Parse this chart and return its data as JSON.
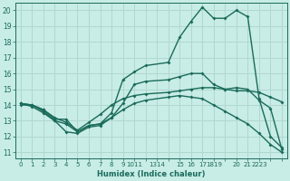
{
  "title": "",
  "xlabel": "Humidex (Indice chaleur)",
  "bg_color": "#c8ece6",
  "line_color": "#1a6b5a",
  "grid_color": "#b0d8d0",
  "xlim": [
    -0.5,
    23.5
  ],
  "ylim": [
    10.6,
    20.5
  ],
  "yticks": [
    11,
    12,
    13,
    14,
    15,
    16,
    17,
    18,
    19,
    20
  ],
  "xtick_positions": [
    0,
    1,
    2,
    3,
    4,
    5,
    6,
    7,
    8,
    9,
    10,
    11,
    12,
    13,
    14,
    15,
    16,
    17,
    18,
    19,
    20,
    21,
    22,
    23
  ],
  "xtick_labels": [
    "0",
    "1",
    "2",
    "3",
    "4",
    "5",
    "6",
    "7",
    "8",
    "9",
    "1011",
    "",
    "1314",
    "",
    "15",
    "16",
    "17",
    "1819",
    "",
    "20",
    "21",
    "2223",
    "",
    ""
  ],
  "lines": [
    {
      "x": [
        0,
        1,
        2,
        3,
        4,
        5,
        6,
        7,
        8,
        9,
        10,
        11,
        13,
        14,
        15,
        16,
        17,
        18,
        19,
        20,
        21,
        22,
        23
      ],
      "y": [
        14.1,
        14.0,
        13.7,
        13.1,
        13.1,
        12.3,
        12.7,
        12.8,
        13.5,
        15.6,
        16.1,
        16.5,
        16.7,
        18.3,
        19.3,
        20.2,
        19.5,
        19.5,
        20.0,
        19.6,
        14.4,
        12.0,
        11.3
      ],
      "marker": "D",
      "markersize": 2.0,
      "lw": 1.0
    },
    {
      "x": [
        0,
        1,
        2,
        3,
        4,
        5,
        6,
        7,
        8,
        9,
        10,
        11,
        13,
        14,
        15,
        16,
        17,
        18,
        19,
        20,
        21,
        22,
        23
      ],
      "y": [
        14.0,
        14.0,
        13.7,
        13.2,
        12.9,
        12.4,
        12.9,
        13.4,
        14.0,
        14.4,
        14.6,
        14.7,
        14.8,
        14.9,
        15.0,
        15.1,
        15.1,
        15.0,
        14.9,
        14.9,
        14.8,
        14.5,
        14.2
      ],
      "marker": "D",
      "markersize": 2.0,
      "lw": 1.0
    },
    {
      "x": [
        0,
        1,
        2,
        3,
        4,
        5,
        6,
        7,
        8,
        9,
        10,
        11,
        13,
        14,
        15,
        16,
        17,
        18,
        19,
        20,
        21,
        22,
        23
      ],
      "y": [
        14.1,
        14.0,
        13.6,
        13.0,
        12.3,
        12.2,
        12.6,
        12.7,
        13.2,
        14.1,
        15.3,
        15.5,
        15.6,
        15.8,
        16.0,
        16.0,
        15.3,
        15.0,
        15.1,
        15.0,
        14.3,
        13.8,
        11.2
      ],
      "marker": "D",
      "markersize": 2.0,
      "lw": 1.0
    },
    {
      "x": [
        0,
        1,
        2,
        3,
        4,
        5,
        6,
        7,
        8,
        9,
        10,
        11,
        13,
        14,
        15,
        16,
        17,
        18,
        19,
        20,
        21,
        22,
        23
      ],
      "y": [
        14.1,
        13.9,
        13.5,
        13.0,
        12.8,
        12.3,
        12.7,
        12.8,
        13.2,
        13.7,
        14.1,
        14.3,
        14.5,
        14.6,
        14.5,
        14.4,
        14.0,
        13.6,
        13.2,
        12.8,
        12.2,
        11.5,
        11.0
      ],
      "marker": "D",
      "markersize": 2.0,
      "lw": 1.0
    }
  ]
}
